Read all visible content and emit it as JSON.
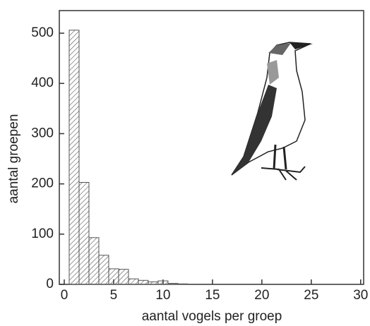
{
  "chart_data": {
    "type": "histogram",
    "xlabel": "aantal vogels per groep",
    "ylabel": "aantal groepen",
    "bins": [
      0.5,
      1.5,
      2.5,
      3.5,
      4.5,
      5.5,
      6.5,
      7.5,
      8.5,
      9.5,
      10.5,
      11.5,
      12.5
    ],
    "values": [
      506,
      203,
      93,
      58,
      31,
      30,
      11,
      8,
      5,
      7,
      2,
      1
    ],
    "color": "#555555",
    "xlim": [
      -0.5,
      30.3
    ],
    "ylim": [
      0,
      545
    ],
    "xticks": [
      0,
      5,
      10,
      15,
      20,
      25,
      30
    ],
    "yticks": [
      0,
      100,
      200,
      300,
      400,
      500
    ]
  }
}
